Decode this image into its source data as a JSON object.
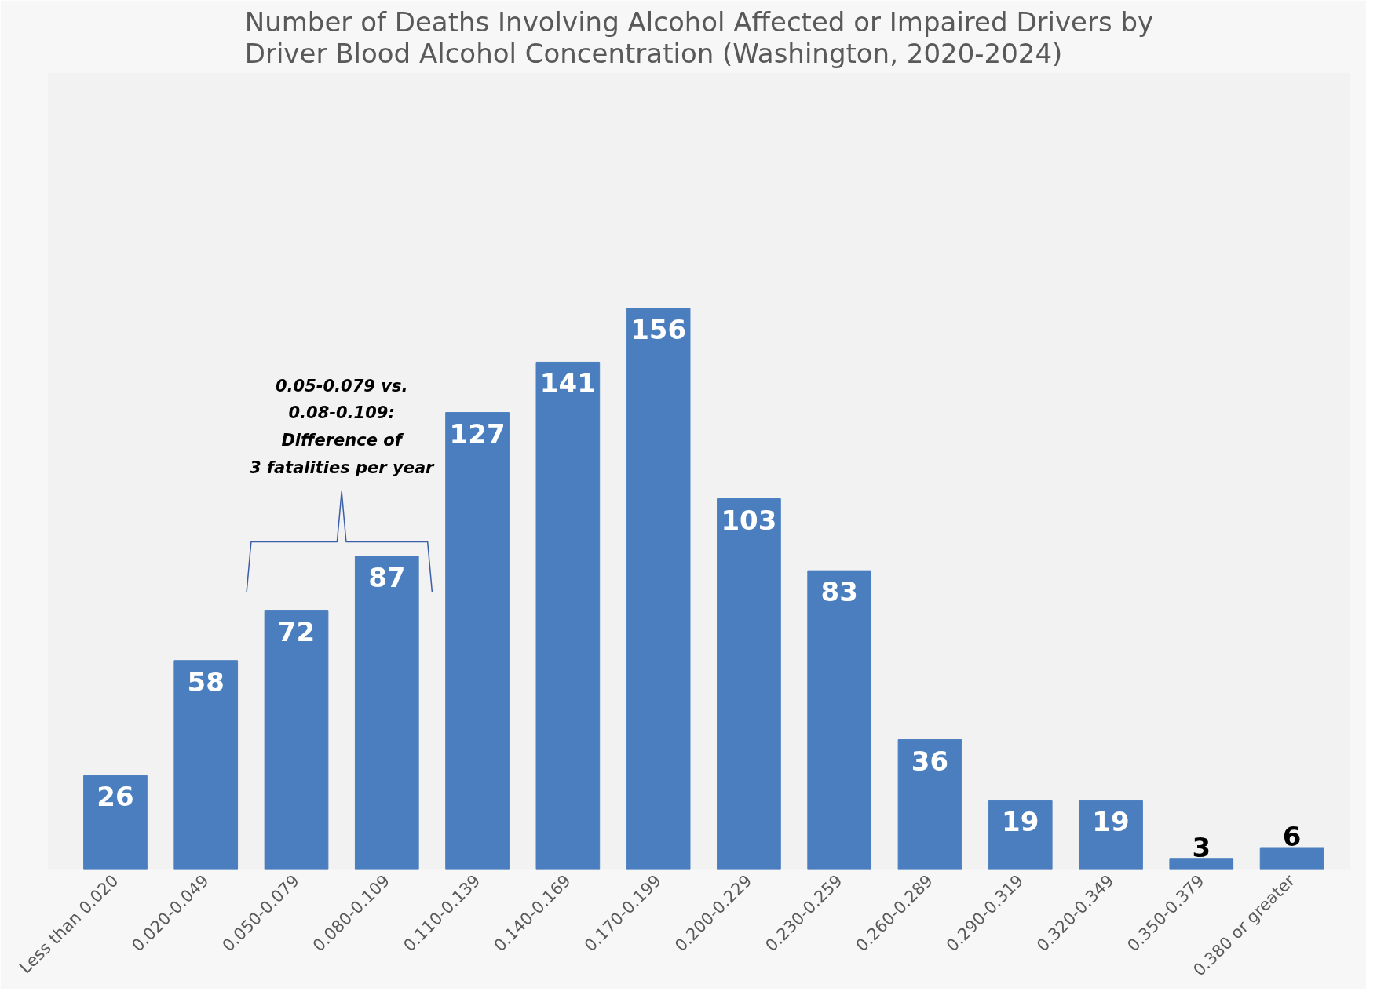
{
  "chart_data": {
    "type": "bar",
    "title": "Number of Deaths Involving Alcohol Affected or Impaired Drivers by\nDriver Blood Alcohol Concentration (Washington, 2020-2024)",
    "categories": [
      "Less than 0.020",
      "0.020-0.049",
      "0.050-0.079",
      "0.080-0.109",
      "0.110-0.139",
      "0.140-0.169",
      "0.170-0.199",
      "0.200-0.229",
      "0.230-0.259",
      "0.260-0.289",
      "0.290-0.319",
      "0.320-0.349",
      "0.350-0.379",
      "0.380 or greater"
    ],
    "values": [
      26,
      58,
      72,
      87,
      127,
      141,
      156,
      103,
      83,
      36,
      19,
      19,
      3,
      6
    ],
    "color": "#4a7ebf",
    "data_labels": true,
    "grid": false,
    "annotations": [
      "0.05-0.079 vs.\n0.08-0.109:\nDifference of\n3 fatalities per year"
    ]
  }
}
